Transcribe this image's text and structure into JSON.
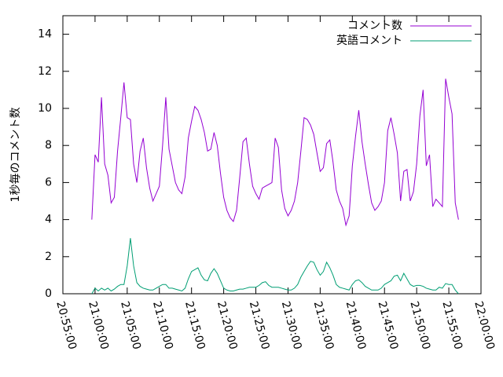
{
  "chart_data": {
    "type": "line",
    "y_label": "1秒毎のコメント数",
    "x": [
      "20:59:30",
      "21:00:00",
      "21:00:30",
      "21:01:00",
      "21:01:30",
      "21:02:00",
      "21:02:30",
      "21:03:00",
      "21:03:30",
      "21:04:00",
      "21:04:30",
      "21:05:00",
      "21:05:30",
      "21:06:00",
      "21:06:30",
      "21:07:00",
      "21:07:30",
      "21:08:00",
      "21:08:30",
      "21:09:00",
      "21:09:30",
      "21:10:00",
      "21:10:30",
      "21:11:00",
      "21:11:30",
      "21:12:00",
      "21:12:30",
      "21:13:00",
      "21:13:30",
      "21:14:00",
      "21:14:30",
      "21:15:00",
      "21:15:30",
      "21:16:00",
      "21:16:30",
      "21:17:00",
      "21:17:30",
      "21:18:00",
      "21:18:30",
      "21:19:00",
      "21:19:30",
      "21:20:00",
      "21:20:30",
      "21:21:00",
      "21:21:30",
      "21:22:00",
      "21:22:30",
      "21:23:00",
      "21:23:30",
      "21:24:00",
      "21:24:30",
      "21:25:00",
      "21:25:30",
      "21:26:00",
      "21:26:30",
      "21:27:00",
      "21:27:30",
      "21:28:00",
      "21:28:30",
      "21:29:00",
      "21:29:30",
      "21:30:00",
      "21:30:30",
      "21:31:00",
      "21:31:30",
      "21:32:00",
      "21:32:30",
      "21:33:00",
      "21:33:30",
      "21:34:00",
      "21:34:30",
      "21:35:00",
      "21:35:30",
      "21:36:00",
      "21:36:30",
      "21:37:00",
      "21:37:30",
      "21:38:00",
      "21:38:30",
      "21:39:00",
      "21:39:30",
      "21:40:00",
      "21:40:30",
      "21:41:00",
      "21:41:30",
      "21:42:00",
      "21:42:30",
      "21:43:00",
      "21:43:30",
      "21:44:00",
      "21:44:30",
      "21:45:00",
      "21:45:30",
      "21:46:00",
      "21:46:30",
      "21:47:00",
      "21:47:30",
      "21:48:00",
      "21:48:30",
      "21:49:00",
      "21:49:30",
      "21:50:00",
      "21:50:30",
      "21:51:00",
      "21:51:30",
      "21:52:00",
      "21:52:30",
      "21:53:00",
      "21:53:30",
      "21:54:00",
      "21:54:30",
      "21:55:00",
      "21:55:30",
      "21:56:00",
      "21:56:30"
    ],
    "series": [
      {
        "name": "コメント数",
        "color": "#9400d3",
        "values": [
          4.0,
          7.5,
          7.1,
          10.6,
          7.0,
          6.4,
          4.9,
          5.2,
          7.7,
          9.5,
          11.4,
          9.5,
          9.4,
          7.0,
          6.0,
          7.7,
          8.4,
          6.8,
          5.7,
          5.0,
          5.4,
          5.8,
          8.0,
          10.6,
          7.8,
          6.9,
          6.0,
          5.6,
          5.4,
          6.3,
          8.4,
          9.3,
          10.1,
          9.9,
          9.4,
          8.7,
          7.7,
          7.8,
          8.7,
          8.0,
          6.5,
          5.2,
          4.5,
          4.1,
          3.9,
          4.5,
          6.3,
          8.2,
          8.4,
          7.0,
          5.8,
          5.4,
          5.1,
          5.7,
          5.8,
          5.9,
          6.0,
          8.4,
          7.9,
          5.6,
          4.6,
          4.2,
          4.5,
          5.0,
          6.0,
          7.7,
          9.5,
          9.4,
          9.1,
          8.6,
          7.6,
          6.6,
          6.8,
          8.1,
          8.3,
          7.1,
          5.6,
          5.0,
          4.6,
          3.7,
          4.2,
          6.9,
          8.5,
          9.9,
          8.2,
          7.0,
          5.9,
          4.9,
          4.5,
          4.7,
          5.0,
          6.0,
          8.8,
          9.5,
          8.6,
          7.6,
          5.0,
          6.6,
          6.7,
          5.0,
          5.5,
          7.0,
          9.6,
          11.0,
          6.9,
          7.5,
          4.7,
          5.1,
          4.9,
          4.7,
          11.6,
          10.6,
          9.7,
          4.9,
          4.0
        ]
      },
      {
        "name": "英語コメント",
        "color": "#009e73",
        "values": [
          0,
          0.3,
          0.15,
          0.3,
          0.2,
          0.3,
          0.15,
          0.25,
          0.4,
          0.5,
          0.5,
          1.5,
          3.0,
          1.5,
          0.6,
          0.4,
          0.3,
          0.25,
          0.2,
          0.2,
          0.3,
          0.4,
          0.5,
          0.5,
          0.3,
          0.3,
          0.25,
          0.2,
          0.15,
          0.3,
          0.8,
          1.2,
          1.3,
          1.4,
          1.0,
          0.75,
          0.7,
          1.1,
          1.35,
          1.1,
          0.7,
          0.3,
          0.2,
          0.15,
          0.15,
          0.2,
          0.25,
          0.25,
          0.3,
          0.35,
          0.35,
          0.35,
          0.45,
          0.6,
          0.65,
          0.45,
          0.35,
          0.35,
          0.35,
          0.3,
          0.25,
          0.2,
          0.2,
          0.3,
          0.5,
          0.9,
          1.2,
          1.5,
          1.75,
          1.7,
          1.3,
          1.0,
          1.2,
          1.7,
          1.4,
          1.0,
          0.5,
          0.35,
          0.3,
          0.25,
          0.2,
          0.5,
          0.7,
          0.75,
          0.6,
          0.4,
          0.3,
          0.2,
          0.2,
          0.2,
          0.3,
          0.5,
          0.6,
          0.7,
          0.95,
          1.0,
          0.7,
          1.1,
          0.8,
          0.5,
          0.4,
          0.45,
          0.45,
          0.4,
          0.3,
          0.25,
          0.2,
          0.2,
          0.35,
          0.3,
          0.55,
          0.5,
          0.5,
          0.2,
          0
        ]
      }
    ],
    "xlim": [
      "20:55:00",
      "22:00:00"
    ],
    "xticks": [
      "20:55:00",
      "21:00:00",
      "21:05:00",
      "21:10:00",
      "21:15:00",
      "21:20:00",
      "21:25:00",
      "21:30:00",
      "21:35:00",
      "21:40:00",
      "21:45:00",
      "21:50:00",
      "21:55:00",
      "22:00:00"
    ],
    "ylim": [
      0,
      15
    ],
    "yticks": [
      0,
      2,
      4,
      6,
      8,
      10,
      12,
      14
    ],
    "legend": "top-right",
    "grid": false
  }
}
